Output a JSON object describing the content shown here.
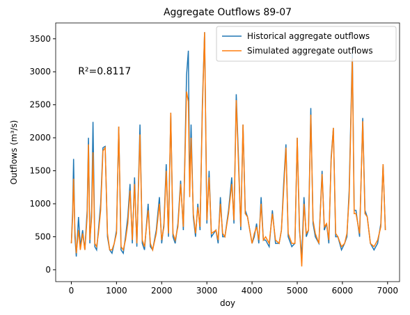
{
  "chart_data": {
    "type": "line",
    "title": "Aggregate Outflows 89-07",
    "xlabel": "doy",
    "ylabel": "Outflows (m³/s)",
    "annotation": "R²=0.8117",
    "x": [
      0,
      30,
      50,
      80,
      110,
      160,
      200,
      250,
      300,
      350,
      380,
      410,
      450,
      480,
      520,
      560,
      600,
      650,
      700,
      750,
      800,
      850,
      900,
      950,
      1000,
      1050,
      1100,
      1150,
      1200,
      1250,
      1300,
      1350,
      1400,
      1450,
      1520,
      1570,
      1620,
      1700,
      1750,
      1800,
      1880,
      1950,
      2000,
      2050,
      2100,
      2150,
      2200,
      2250,
      2300,
      2360,
      2420,
      2480,
      2550,
      2590,
      2620,
      2650,
      2700,
      2750,
      2800,
      2850,
      2900,
      2950,
      3000,
      3050,
      3100,
      3200,
      3250,
      3300,
      3350,
      3400,
      3480,
      3550,
      3600,
      3650,
      3700,
      3750,
      3800,
      3850,
      3900,
      4000,
      4050,
      4100,
      4150,
      4200,
      4250,
      4300,
      4380,
      4450,
      4520,
      4600,
      4650,
      4700,
      4750,
      4800,
      4880,
      4950,
      5000,
      5050,
      5100,
      5150,
      5200,
      5250,
      5300,
      5350,
      5400,
      5480,
      5550,
      5600,
      5650,
      5700,
      5750,
      5800,
      5850,
      5900,
      5980,
      6050,
      6100,
      6150,
      6220,
      6260,
      6300,
      6380,
      6450,
      6500,
      6550,
      6620,
      6700,
      6780,
      6850,
      6900,
      6950
    ],
    "series": [
      {
        "name": "Historical aggregate outflows",
        "color": "#1f77b4",
        "values": [
          400,
          900,
          1680,
          500,
          200,
          800,
          350,
          600,
          300,
          900,
          2000,
          400,
          900,
          2240,
          350,
          300,
          600,
          1000,
          1850,
          1870,
          500,
          300,
          250,
          400,
          600,
          2170,
          300,
          250,
          500,
          800,
          1300,
          400,
          1400,
          350,
          2200,
          400,
          300,
          1000,
          350,
          300,
          600,
          1100,
          400,
          700,
          1600,
          500,
          2380,
          500,
          400,
          700,
          1350,
          600,
          2950,
          3320,
          1200,
          2200,
          800,
          500,
          1000,
          600,
          2500,
          3600,
          700,
          1500,
          500,
          600,
          400,
          1100,
          500,
          500,
          900,
          1400,
          700,
          2660,
          1700,
          600,
          2200,
          900,
          800,
          400,
          500,
          700,
          400,
          1100,
          450,
          450,
          350,
          900,
          400,
          400,
          600,
          1300,
          1900,
          500,
          350,
          400,
          2000,
          600,
          200,
          1100,
          500,
          600,
          2450,
          700,
          500,
          400,
          1500,
          600,
          700,
          400,
          1700,
          2150,
          500,
          500,
          300,
          400,
          500,
          1200,
          3300,
          900,
          900,
          500,
          2300,
          900,
          800,
          400,
          300,
          400,
          700,
          1600,
          600
        ]
      },
      {
        "name": "Simulated aggregate outflows",
        "color": "#ff7f0e",
        "values": [
          400,
          800,
          1380,
          600,
          250,
          600,
          300,
          550,
          300,
          800,
          1900,
          450,
          800,
          1780,
          400,
          350,
          550,
          900,
          1800,
          1850,
          550,
          300,
          300,
          400,
          550,
          2170,
          350,
          300,
          450,
          700,
          1200,
          450,
          1300,
          400,
          2050,
          450,
          350,
          900,
          400,
          300,
          550,
          1000,
          450,
          650,
          1500,
          550,
          2380,
          550,
          450,
          650,
          1300,
          650,
          2700,
          2550,
          1100,
          2000,
          850,
          550,
          950,
          650,
          2400,
          3600,
          750,
          1400,
          550,
          600,
          450,
          1000,
          550,
          500,
          850,
          1300,
          750,
          2570,
          1600,
          650,
          2200,
          850,
          800,
          400,
          550,
          650,
          450,
          1000,
          450,
          500,
          400,
          850,
          450,
          400,
          600,
          1200,
          1850,
          550,
          400,
          400,
          2000,
          650,
          50,
          1000,
          550,
          600,
          2350,
          750,
          550,
          400,
          1450,
          650,
          700,
          450,
          1650,
          2150,
          550,
          500,
          350,
          400,
          550,
          1100,
          3200,
          850,
          850,
          550,
          2250,
          850,
          800,
          400,
          350,
          450,
          650,
          1600,
          600
        ]
      }
    ],
    "xlim": [
      -346,
      7265
    ],
    "xticks": [
      0,
      1000,
      2000,
      3000,
      4000,
      5000,
      6000,
      7000
    ],
    "ylim": [
      -180,
      3740
    ],
    "yticks": [
      0,
      500,
      1000,
      1500,
      2000,
      2500,
      3000,
      3500
    ],
    "legend": "upper right"
  }
}
